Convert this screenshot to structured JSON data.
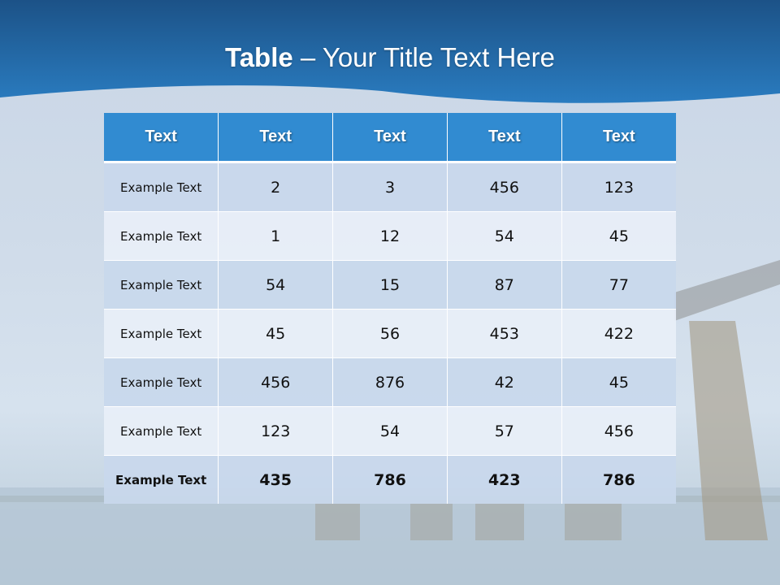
{
  "slide": {
    "title_bold": "Table",
    "title_rest": " – Your Title Text Here",
    "header_color": "#1f6aa8",
    "table_header_color": "#318bd1"
  },
  "table": {
    "headers": [
      "Text",
      "Text",
      "Text",
      "Text",
      "Text"
    ],
    "rows": [
      [
        "Example Text",
        "2",
        "3",
        "456",
        "123"
      ],
      [
        "Example Text",
        "1",
        "12",
        "54",
        "45"
      ],
      [
        "Example Text",
        "54",
        "15",
        "87",
        "77"
      ],
      [
        "Example Text",
        "45",
        "56",
        "453",
        "422"
      ],
      [
        "Example Text",
        "456",
        "876",
        "42",
        "45"
      ],
      [
        "Example Text",
        "123",
        "54",
        "57",
        "456"
      ],
      [
        "Example Text",
        "435",
        "786",
        "423",
        "786"
      ]
    ]
  }
}
